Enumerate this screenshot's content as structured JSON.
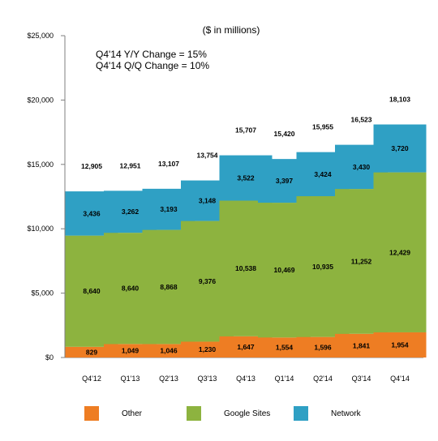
{
  "chart_data": {
    "type": "bar",
    "stacked": true,
    "unit_note": "($ in millions)",
    "annotations": [
      "Q4'14 Y/Y Change = 15%",
      "Q4'14 Q/Q Change = 10%"
    ],
    "categories": [
      "Q4'12",
      "Q1'13",
      "Q2'13",
      "Q3'13",
      "Q4'13",
      "Q1'14",
      "Q2'14",
      "Q3'14",
      "Q4'14"
    ],
    "series": [
      {
        "name": "Other",
        "color": "#ee7d23",
        "values": [
          829,
          1049,
          1046,
          1230,
          1647,
          1554,
          1596,
          1841,
          1954
        ]
      },
      {
        "name": "Google Sites",
        "color": "#8db33f",
        "values": [
          8640,
          8640,
          8868,
          9376,
          10538,
          10469,
          10935,
          11252,
          12429
        ]
      },
      {
        "name": "Network",
        "color": "#2fa0c4",
        "values": [
          3436,
          3262,
          3193,
          3148,
          3522,
          3397,
          3424,
          3430,
          3720
        ]
      }
    ],
    "totals": [
      12905,
      12951,
      13107,
      13754,
      15707,
      15420,
      15955,
      16523,
      18103
    ],
    "ylim": [
      0,
      25000
    ],
    "yticks": [
      {
        "value": 0,
        "label": "$0"
      },
      {
        "value": 5000,
        "label": "$5,000"
      },
      {
        "value": 10000,
        "label": "$10,000"
      },
      {
        "value": 15000,
        "label": "$15,000"
      },
      {
        "value": 20000,
        "label": "$20,000"
      },
      {
        "value": 25000,
        "label": "$25,000"
      }
    ],
    "grid": false,
    "legend_position": "bottom"
  }
}
